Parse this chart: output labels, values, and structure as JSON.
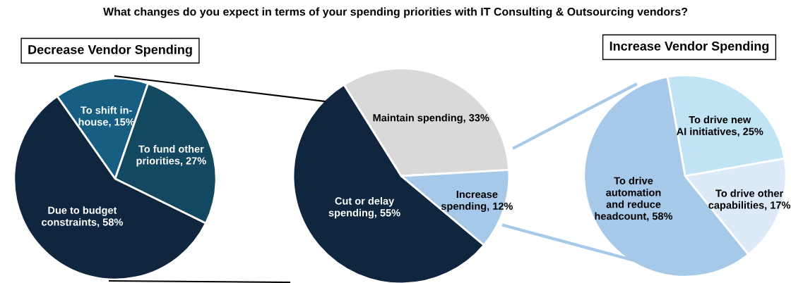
{
  "chart_data": [
    {
      "type": "pie",
      "title": "Decrease Vendor Spending",
      "categories": [
        "To shift in-\nhouse",
        "To fund other\npriorities",
        "Due to budget\nconstraints"
      ],
      "values": [
        15,
        27,
        58
      ],
      "value_labels": [
        "15%",
        "27%",
        "58%"
      ],
      "colors": [
        "#165f82",
        "#134960",
        "#10263f"
      ]
    },
    {
      "type": "pie",
      "title": "What changes do you expect in terms of your spending priorities with IT Consulting & Outsourcing vendors?",
      "categories": [
        "Maintain spending",
        "Increase\nspending",
        "Cut or delay\nspending"
      ],
      "values": [
        33,
        12,
        55
      ],
      "value_labels": [
        "33%",
        "12%",
        "55%"
      ],
      "colors": [
        "#d9d9d9",
        "#a6c9ea",
        "#10263f"
      ]
    },
    {
      "type": "pie",
      "title": "Increase Vendor Spending",
      "categories": [
        "To drive new\nAI initiatives",
        "To drive other\ncapabilities",
        "To drive\nautomation\nand reduce\nheadcount"
      ],
      "values": [
        25,
        17,
        58
      ],
      "value_labels": [
        "25%",
        "17%",
        "58%"
      ],
      "colors": [
        "#c1e4f5",
        "#dce9f6",
        "#a6c9ea"
      ]
    }
  ]
}
